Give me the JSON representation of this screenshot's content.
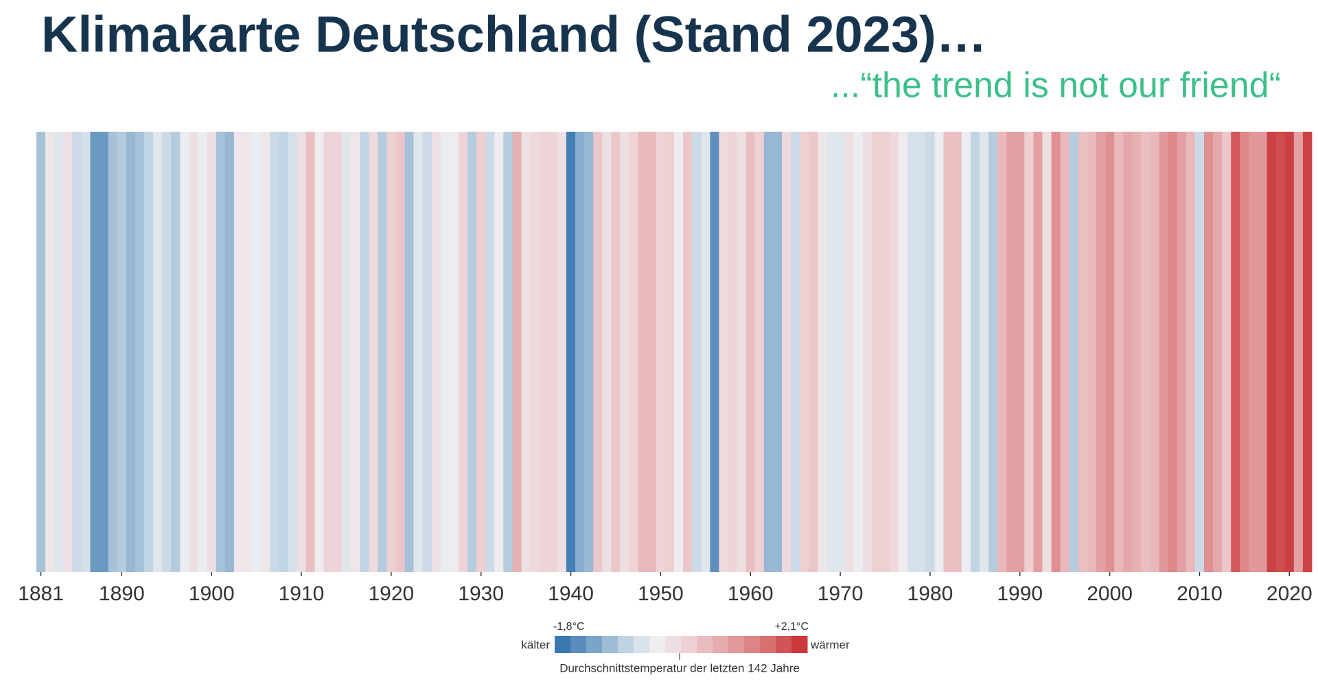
{
  "chart_data": {
    "type": "stripes",
    "title": "Klimakarte Deutschland (Stand 2023)…",
    "subtitle": "...“the trend is not our friend“",
    "x": [
      1881,
      1882,
      1883,
      1884,
      1885,
      1886,
      1887,
      1888,
      1889,
      1890,
      1891,
      1892,
      1893,
      1894,
      1895,
      1896,
      1897,
      1898,
      1899,
      1900,
      1901,
      1902,
      1903,
      1904,
      1905,
      1906,
      1907,
      1908,
      1909,
      1910,
      1911,
      1912,
      1913,
      1914,
      1915,
      1916,
      1917,
      1918,
      1919,
      1920,
      1921,
      1922,
      1923,
      1924,
      1925,
      1926,
      1927,
      1928,
      1929,
      1930,
      1931,
      1932,
      1933,
      1934,
      1935,
      1936,
      1937,
      1938,
      1939,
      1940,
      1941,
      1942,
      1943,
      1944,
      1945,
      1946,
      1947,
      1948,
      1949,
      1950,
      1951,
      1952,
      1953,
      1954,
      1955,
      1956,
      1957,
      1958,
      1959,
      1960,
      1961,
      1962,
      1963,
      1964,
      1965,
      1966,
      1967,
      1968,
      1969,
      1970,
      1971,
      1972,
      1973,
      1974,
      1975,
      1976,
      1977,
      1978,
      1979,
      1980,
      1981,
      1982,
      1983,
      1984,
      1985,
      1986,
      1987,
      1988,
      1989,
      1990,
      1991,
      1992,
      1993,
      1994,
      1995,
      1996,
      1997,
      1998,
      1999,
      2000,
      2001,
      2002,
      2003,
      2004,
      2005,
      2006,
      2007,
      2008,
      2009,
      2010,
      2011,
      2012,
      2013,
      2014,
      2015,
      2016,
      2017,
      2018,
      2019,
      2020,
      2021,
      2022
    ],
    "values": [
      -0.9,
      -0.1,
      -0.4,
      0.0,
      -0.6,
      -0.5,
      -1.3,
      -1.3,
      -0.9,
      -0.8,
      -1.0,
      -0.9,
      -0.7,
      -0.4,
      -0.6,
      -0.8,
      -0.3,
      0.0,
      -0.3,
      0.0,
      -0.9,
      -1.0,
      -0.1,
      -0.1,
      -0.3,
      -0.1,
      -0.6,
      -0.7,
      -0.5,
      0.0,
      0.5,
      -0.2,
      0.2,
      0.2,
      -0.4,
      -0.1,
      -0.7,
      0.1,
      -0.8,
      0.3,
      0.4,
      -0.9,
      -0.4,
      -0.6,
      0.0,
      -0.3,
      -0.2,
      0.2,
      -0.8,
      0.3,
      -0.6,
      -0.2,
      -0.8,
      0.7,
      0.0,
      0.1,
      0.2,
      0.2,
      0.0,
      -1.6,
      -1.1,
      -1.0,
      0.4,
      0.0,
      0.4,
      0.0,
      0.2,
      0.6,
      0.6,
      0.2,
      0.3,
      -0.2,
      0.4,
      -0.6,
      -0.4,
      -1.4,
      0.1,
      0.2,
      0.0,
      0.5,
      0.3,
      -1.0,
      -1.0,
      0.1,
      -0.6,
      0.3,
      0.4,
      -0.1,
      -0.4,
      -0.4,
      0.0,
      -0.3,
      0.0,
      0.3,
      0.3,
      0.1,
      -0.2,
      -0.5,
      -0.5,
      -0.6,
      -0.3,
      0.5,
      0.5,
      -0.3,
      -0.7,
      -0.4,
      -0.8,
      0.6,
      0.9,
      0.9,
      0.3,
      0.9,
      0.0,
      1.1,
      0.6,
      -0.8,
      0.5,
      0.6,
      0.9,
      1.1,
      0.6,
      0.8,
      0.7,
      0.5,
      0.6,
      1.0,
      1.2,
      0.9,
      0.6,
      -0.6,
      1.1,
      0.8,
      0.4,
      1.7,
      1.2,
      1.0,
      1.0,
      1.9,
      1.8,
      1.9,
      0.9,
      1.9
    ],
    "xlim": [
      1880.5,
      2022.5
    ],
    "xticks": [
      1881,
      1890,
      1900,
      1910,
      1920,
      1930,
      1940,
      1950,
      1960,
      1970,
      1980,
      1990,
      2000,
      2010,
      2020
    ],
    "colormap": [
      "#2a6ead",
      "#6d9ac4",
      "#b9cfe0",
      "#eef0f2",
      "#eecfd2",
      "#e3a0a2",
      "#d86f6f",
      "#c62a2f"
    ],
    "vlim": [
      {
        "value": -1.8,
        "label": "-1,8°C"
      },
      {
        "value": 2.1,
        "label": "+2,1°C"
      }
    ],
    "legend_low": "kälter",
    "legend_high": "wärmer",
    "legend_caption": "Durchschnittstemperatur der letzten 142 Jahre"
  }
}
